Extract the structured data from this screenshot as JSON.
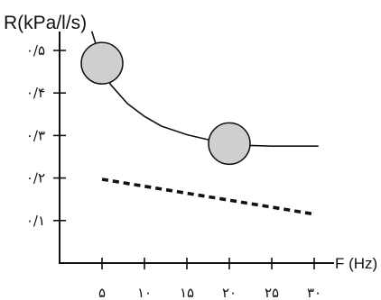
{
  "chart_data": {
    "type": "line",
    "ylabel": "R(kPa/l/s)",
    "xlabel": "F (Hz)",
    "xlim": [
      0,
      31
    ],
    "ylim": [
      0,
      0.58
    ],
    "x_ticks": [
      5,
      10,
      15,
      20,
      25,
      30
    ],
    "x_tick_labels": [
      "۵",
      "۱۰",
      "۱۵",
      "۲۰",
      "۲۵",
      "۳۰"
    ],
    "y_ticks": [
      0.1,
      0.2,
      0.3,
      0.4,
      0.5
    ],
    "y_tick_labels": [
      "۰/۱",
      "۰/۲",
      "۰/۳",
      "۰/۴",
      "۰/۵"
    ],
    "series": [
      {
        "style": "solid",
        "x": [
          3.8,
          4.5,
          5,
          6,
          8,
          10,
          12,
          15,
          18,
          20,
          22,
          25,
          28,
          30.5
        ],
        "y": [
          0.545,
          0.5,
          0.47,
          0.42,
          0.375,
          0.345,
          0.322,
          0.302,
          0.288,
          0.281,
          0.277,
          0.275,
          0.275,
          0.275
        ]
      },
      {
        "style": "dashed",
        "x": [
          5,
          30
        ],
        "y": [
          0.197,
          0.115
        ]
      }
    ],
    "markers": [
      {
        "x": 5,
        "y": 0.47
      },
      {
        "x": 20,
        "y": 0.281
      }
    ]
  }
}
